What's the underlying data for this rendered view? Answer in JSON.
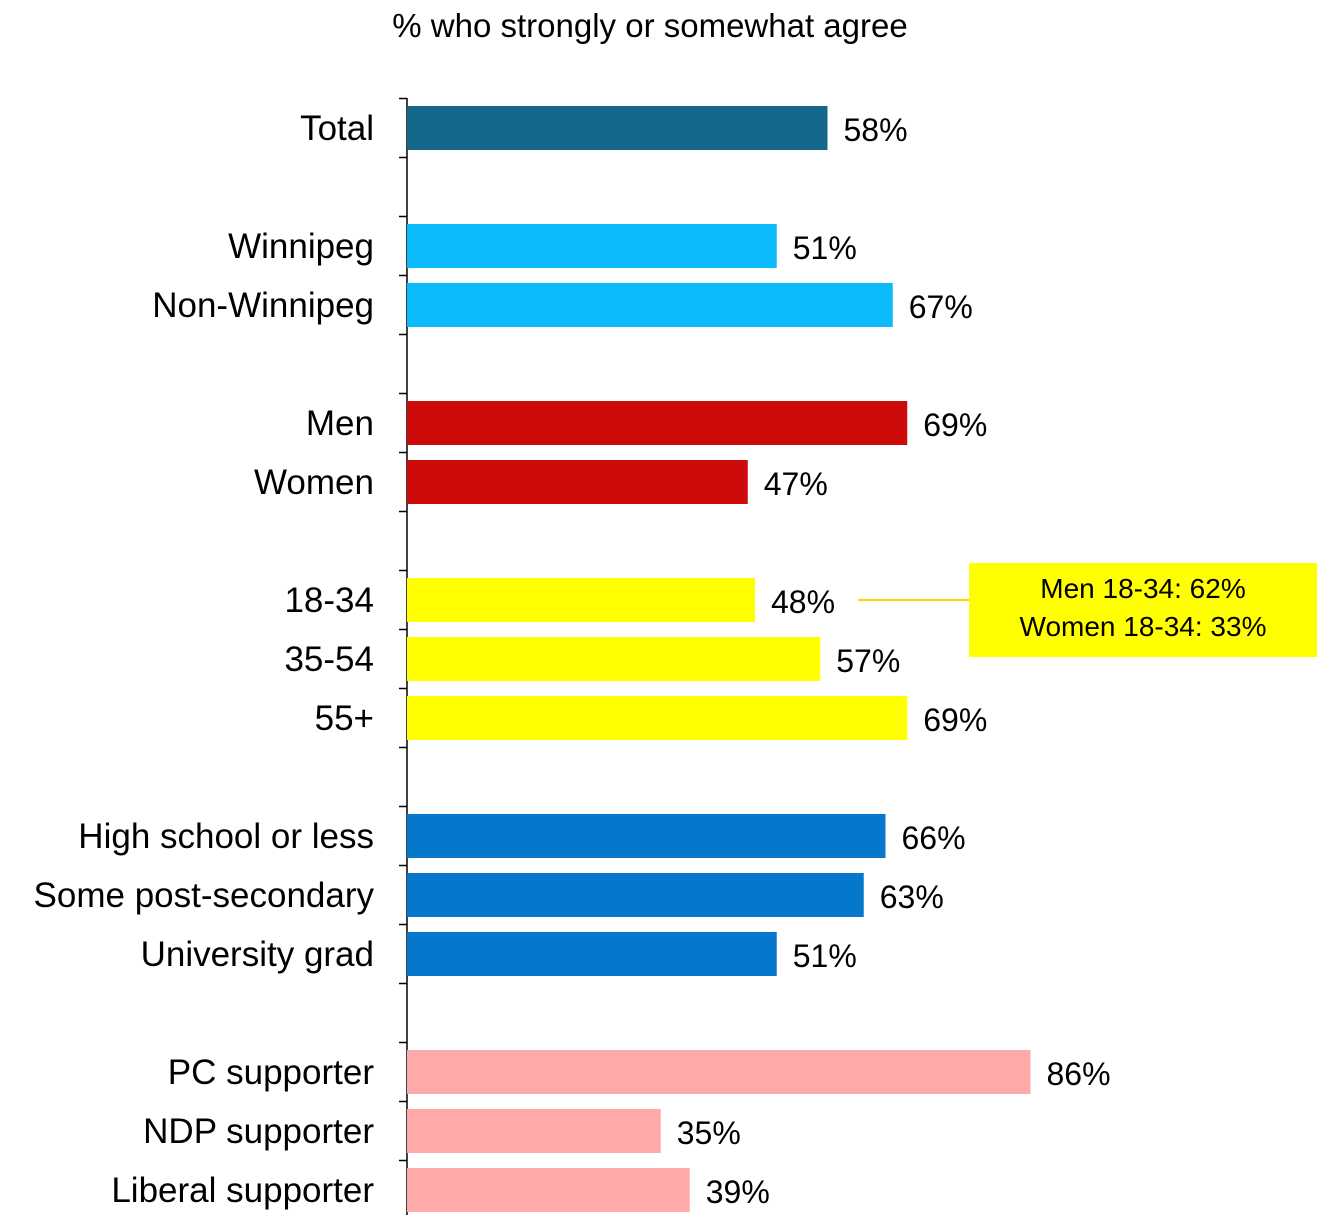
{
  "chart_data": {
    "type": "bar",
    "orientation": "horizontal",
    "title": "% who strongly or somewhat agree",
    "xlim": [
      0,
      100
    ],
    "grid": false,
    "legend": "none",
    "groups": [
      {
        "color": "#12678A",
        "items": [
          {
            "label": "Total",
            "value": 58,
            "value_label": "58%"
          }
        ]
      },
      {
        "color": "#0BBBF9",
        "items": [
          {
            "label": "Winnipeg",
            "value": 51,
            "value_label": "51%"
          },
          {
            "label": "Non-Winnipeg",
            "value": 67,
            "value_label": "67%"
          }
        ]
      },
      {
        "color": "#CC0A0A",
        "items": [
          {
            "label": "Men",
            "value": 69,
            "value_label": "69%"
          },
          {
            "label": "Women",
            "value": 47,
            "value_label": "47%"
          }
        ]
      },
      {
        "color": "#FFFF00",
        "items": [
          {
            "label": "18-34",
            "value": 48,
            "value_label": "48%"
          },
          {
            "label": "35-54",
            "value": 57,
            "value_label": "57%"
          },
          {
            "label": "55+",
            "value": 69,
            "value_label": "69%"
          }
        ]
      },
      {
        "color": "#0678CC",
        "items": [
          {
            "label": "High school or less",
            "value": 66,
            "value_label": "66%"
          },
          {
            "label": "Some post-secondary",
            "value": 63,
            "value_label": "63%"
          },
          {
            "label": "University grad",
            "value": 51,
            "value_label": "51%"
          }
        ]
      },
      {
        "color": "#FFAAAA",
        "items": [
          {
            "label": "PC supporter",
            "value": 86,
            "value_label": "86%"
          },
          {
            "label": "NDP supporter",
            "value": 35,
            "value_label": "35%"
          },
          {
            "label": "Liberal supporter",
            "value": 39,
            "value_label": "39%"
          }
        ]
      }
    ],
    "annotation": {
      "attached_to": "18-34",
      "lines": [
        "Men 18-34: 62%",
        "Women 18-34: 33%"
      ],
      "background": "#FFFF00"
    }
  }
}
